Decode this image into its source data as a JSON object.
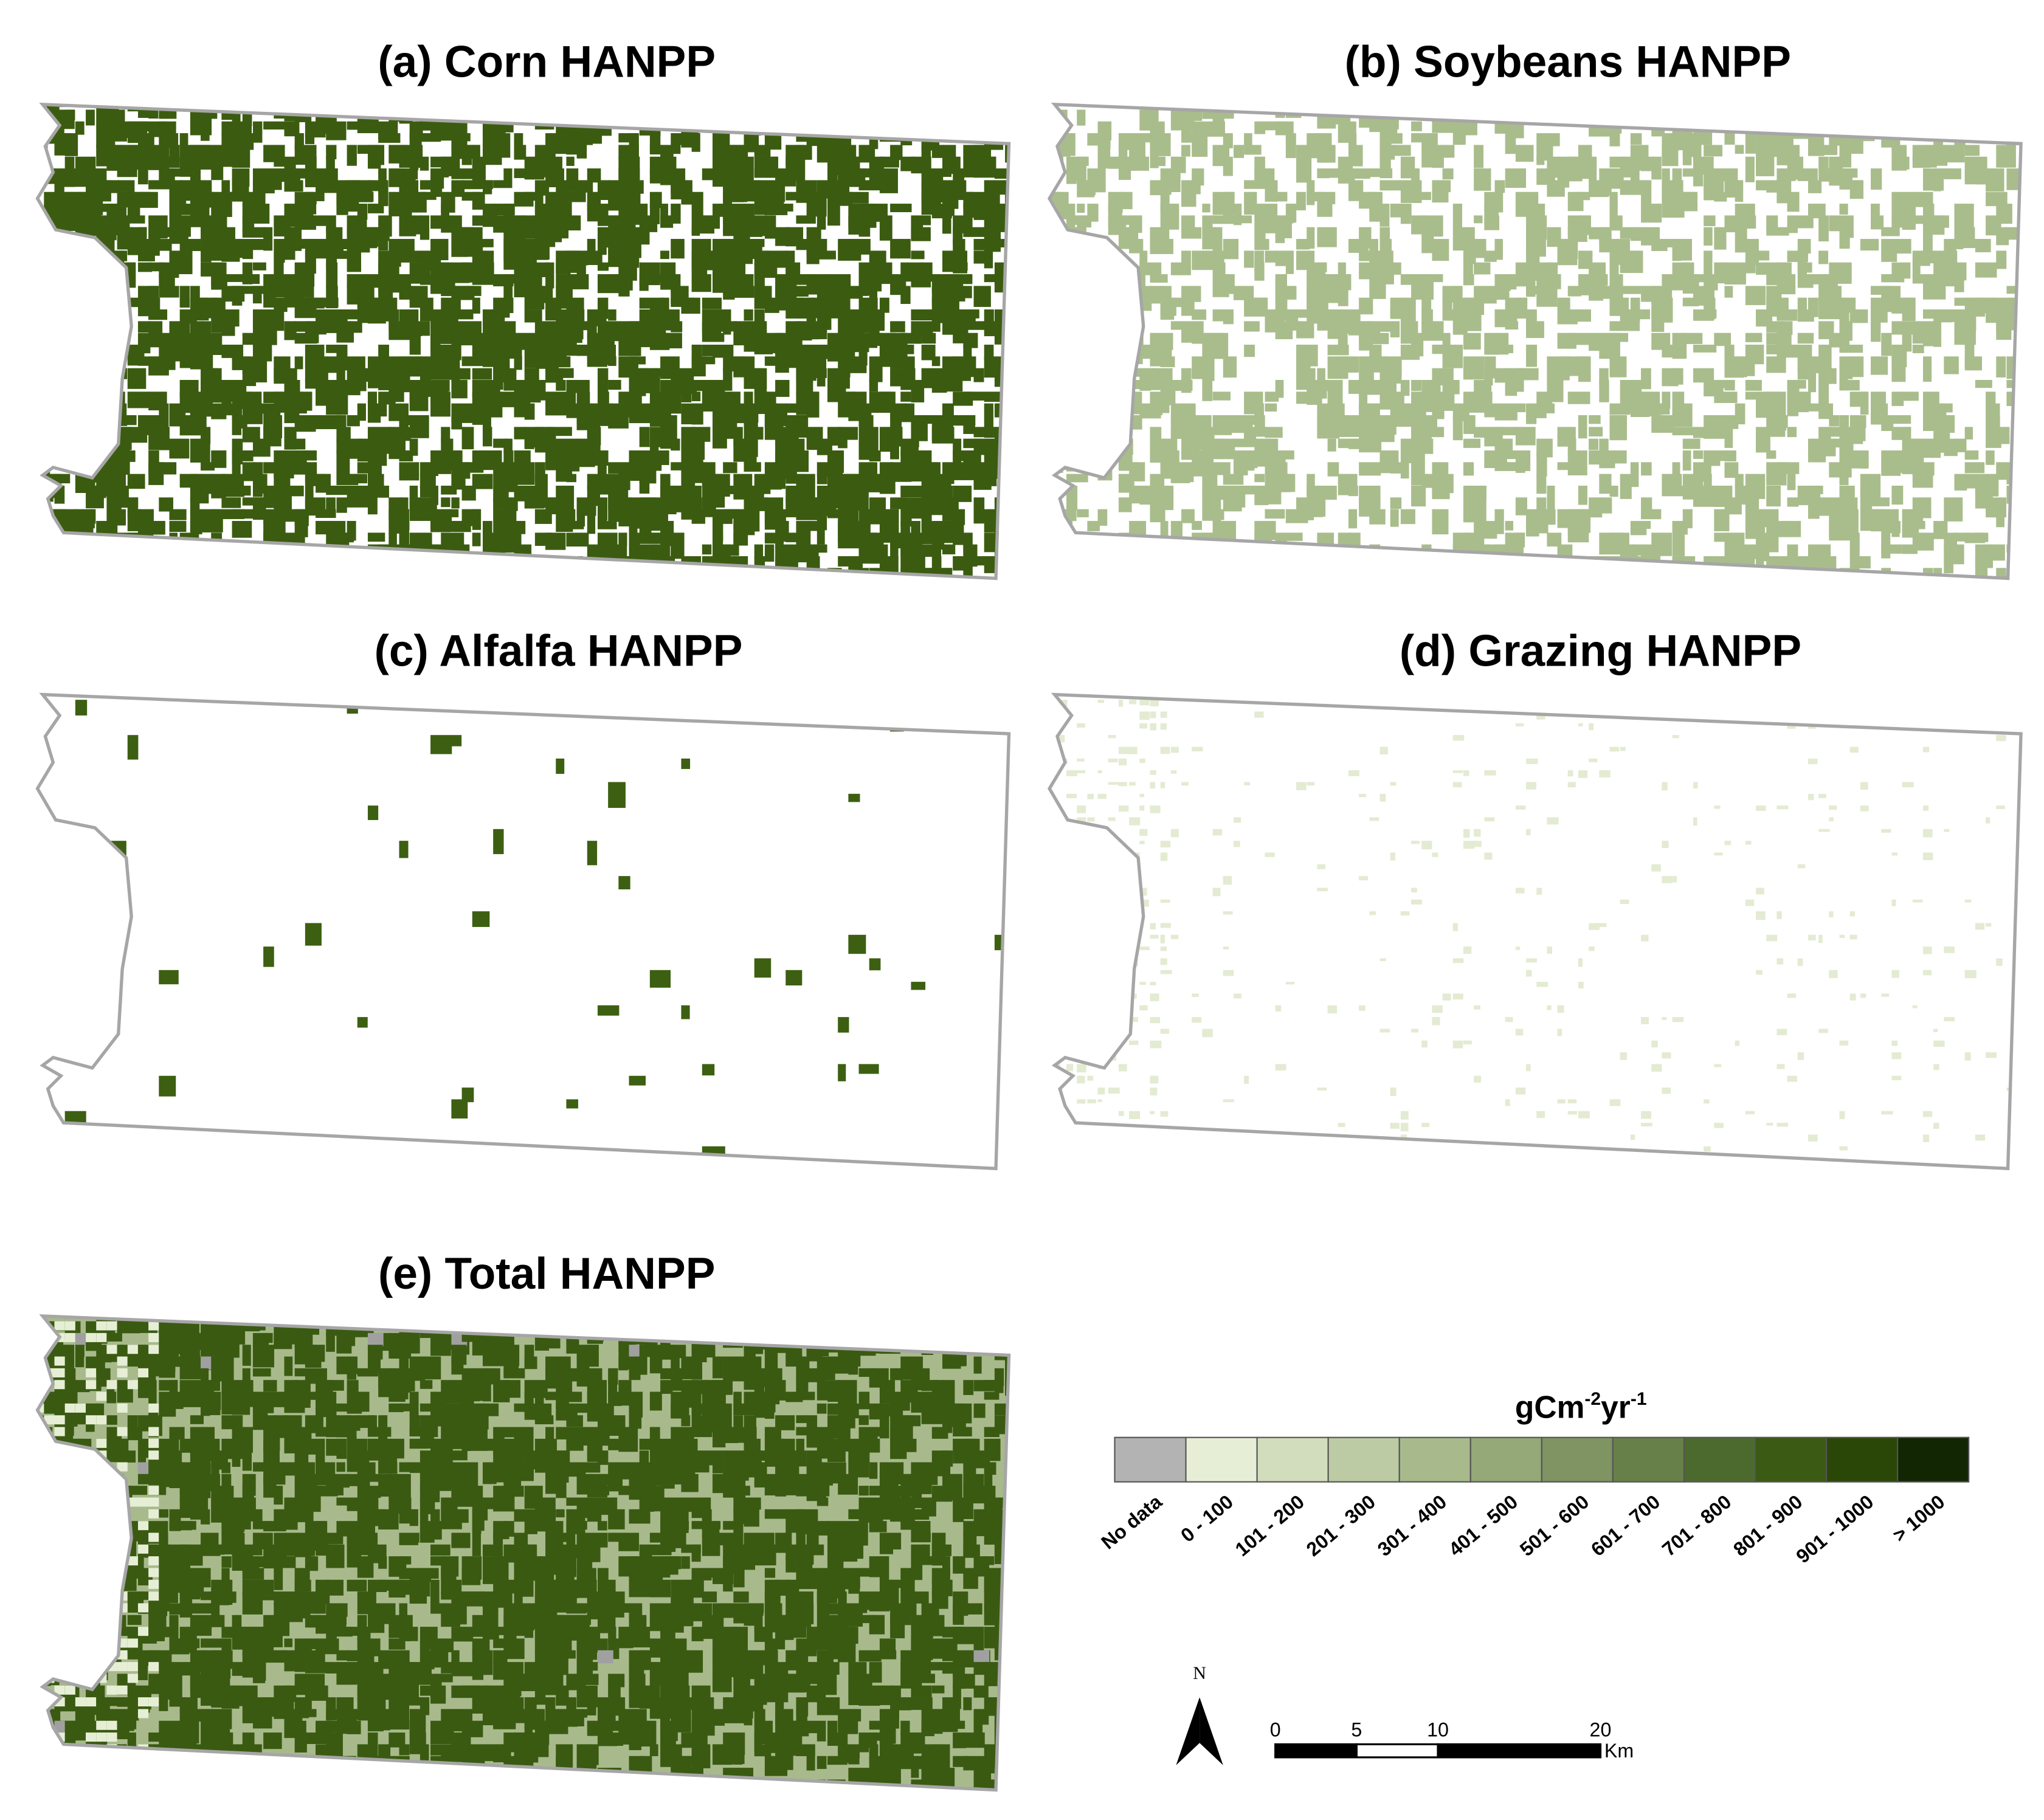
{
  "panels": [
    {
      "title": "(a) Corn HANPP",
      "color": "#3b5c10",
      "density": 0.52
    },
    {
      "title": "(b) Soybeans HANPP",
      "color": "#a9bd8c",
      "density": 0.36
    },
    {
      "title": "(c) Alfalfa HANPP",
      "color": "#3d5f12",
      "density": 0.012
    },
    {
      "title": "(d) Grazing HANPP",
      "color": "#e3ebd2",
      "density": 0.08
    },
    {
      "title": "(e) Total HANPP",
      "color": "#3a5a12",
      "base_color": "#a8ba8c",
      "density": 0.55
    }
  ],
  "legend": {
    "title_parts": [
      "gCm",
      "-2",
      "yr",
      "-1"
    ],
    "classes": [
      {
        "label": "No data",
        "color": "#b3b3b3"
      },
      {
        "label": "0 - 100",
        "color": "#e6efd5"
      },
      {
        "label": "101 - 200",
        "color": "#d2ddbd"
      },
      {
        "label": "201 - 300",
        "color": "#bccba4"
      },
      {
        "label": "301 - 400",
        "color": "#a8ba8c"
      },
      {
        "label": "401 - 500",
        "color": "#94a878"
      },
      {
        "label": "501 - 600",
        "color": "#7f9363"
      },
      {
        "label": "601 - 700",
        "color": "#67804a"
      },
      {
        "label": "701 - 800",
        "color": "#4d6a2e"
      },
      {
        "label": "801 - 900",
        "color": "#3b5a14"
      },
      {
        "label": "901 - 1000",
        "color": "#2a4708"
      },
      {
        "label": "> 1000",
        "color": "#122604"
      }
    ]
  },
  "scale_bar": {
    "ticks": [
      0,
      5,
      10,
      20
    ],
    "unit": "Km"
  },
  "north_arrow": {
    "label": "N"
  }
}
